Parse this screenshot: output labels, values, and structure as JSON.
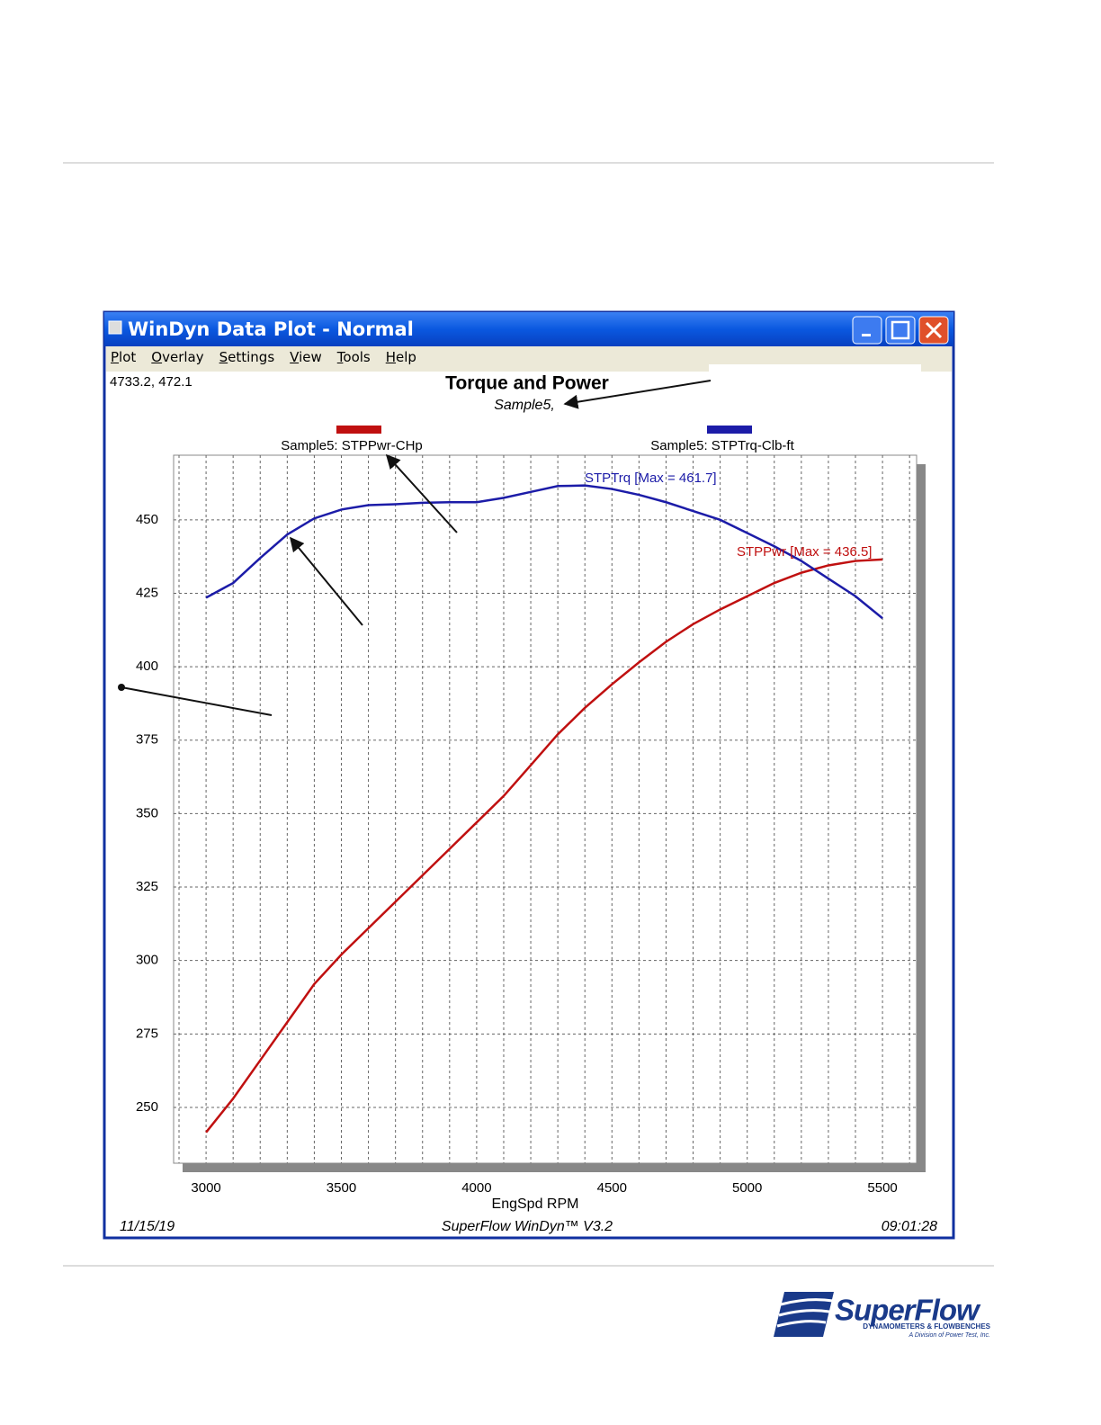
{
  "window": {
    "title": "WinDyn Data Plot - Normal",
    "menu": [
      "Plot",
      "Overlay",
      "Settings",
      "View",
      "Tools",
      "Help"
    ],
    "cursor_readout": "4733.2, 472.1",
    "footer": {
      "date": "11/15/19",
      "program": "SuperFlow WinDyn™ V3.2",
      "time": "09:01:28"
    }
  },
  "logo": {
    "name": "SuperFlow",
    "tagline": "DYNAMOMETERS & FLOWBENCHES",
    "division": "A Division of Power Test, Inc."
  },
  "chart_data": {
    "type": "line",
    "title": "Torque and Power",
    "subtitle": "Sample5,",
    "x_label": "EngSpd RPM",
    "x": [
      3000,
      3100,
      3200,
      3300,
      3400,
      3500,
      3600,
      3700,
      3800,
      3900,
      4000,
      4100,
      4200,
      4300,
      4400,
      4500,
      4600,
      4700,
      4800,
      4900,
      5000,
      5100,
      5200,
      5300,
      5400,
      5500
    ],
    "series": [
      {
        "name": "Sample5: STPPwr-CHp",
        "color": "#c01010",
        "values": [
          241.5,
          253,
          266,
          279,
          292,
          302,
          311,
          320,
          329,
          338,
          347,
          356,
          366.5,
          377,
          386,
          394,
          401.5,
          408.5,
          414.5,
          419.5,
          424,
          428.5,
          432,
          434.5,
          436,
          436.5
        ],
        "annotation": "STPPwr [Max = 436.5]"
      },
      {
        "name": "Sample5: STPTrq-Clb-ft",
        "color": "#1c1ca8",
        "values": [
          423.5,
          428.5,
          437,
          445,
          450.5,
          453.5,
          455,
          455.3,
          455.8,
          456,
          456,
          457.5,
          459.5,
          461.5,
          461.7,
          460.5,
          458.5,
          456,
          453,
          450,
          445.5,
          441,
          436,
          430,
          424,
          416.5
        ],
        "annotation": "STPTrq [Max = 461.7]"
      }
    ],
    "xlim": [
      2880,
      5626
    ],
    "ylim": [
      231,
      472
    ],
    "xticks": [
      3000,
      3500,
      4000,
      4500,
      5000,
      5500
    ],
    "yticks": [
      250,
      275,
      300,
      325,
      350,
      375,
      400,
      425,
      450
    ],
    "x_grid": [
      2900,
      3000,
      3100,
      3200,
      3300,
      3400,
      3500,
      3600,
      3700,
      3800,
      3900,
      4000,
      4100,
      4200,
      4300,
      4400,
      4500,
      4600,
      4700,
      4800,
      4900,
      5000,
      5100,
      5200,
      5300,
      5400,
      5500,
      5600
    ],
    "grid": true
  }
}
